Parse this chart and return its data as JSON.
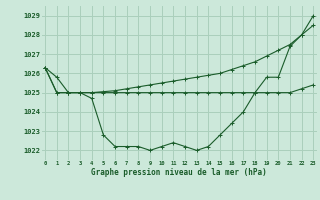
{
  "title": "Graphe pression niveau de la mer (hPa)",
  "background_color": "#cce8da",
  "grid_color": "#aacfbc",
  "line_color": "#1a5c2a",
  "x_ticks": [
    0,
    1,
    2,
    3,
    4,
    5,
    6,
    7,
    8,
    9,
    10,
    11,
    12,
    13,
    14,
    15,
    16,
    17,
    18,
    19,
    20,
    21,
    22,
    23
  ],
  "ylim": [
    1021.5,
    1029.5
  ],
  "yticks": [
    1022,
    1023,
    1024,
    1025,
    1026,
    1027,
    1028,
    1029
  ],
  "series": [
    [
      1026.3,
      1025.8,
      1025.0,
      1025.0,
      1024.7,
      1022.8,
      1022.2,
      1022.2,
      1022.2,
      1022.0,
      1022.2,
      1022.4,
      1022.2,
      1022.0,
      1022.2,
      1022.8,
      1023.4,
      1024.0,
      1025.0,
      1025.8,
      1025.8,
      1027.4,
      1028.0,
      1029.0
    ],
    [
      1026.3,
      1025.0,
      1025.0,
      1025.0,
      1025.0,
      1025.0,
      1025.0,
      1025.0,
      1025.0,
      1025.0,
      1025.0,
      1025.0,
      1025.0,
      1025.0,
      1025.0,
      1025.0,
      1025.0,
      1025.0,
      1025.0,
      1025.0,
      1025.0,
      1025.0,
      1025.2,
      1025.4
    ],
    [
      1026.3,
      1025.0,
      1025.0,
      1025.0,
      1025.0,
      1025.05,
      1025.1,
      1025.2,
      1025.3,
      1025.4,
      1025.5,
      1025.6,
      1025.7,
      1025.8,
      1025.9,
      1026.0,
      1026.2,
      1026.4,
      1026.6,
      1026.9,
      1027.2,
      1027.5,
      1028.0,
      1028.5
    ]
  ]
}
